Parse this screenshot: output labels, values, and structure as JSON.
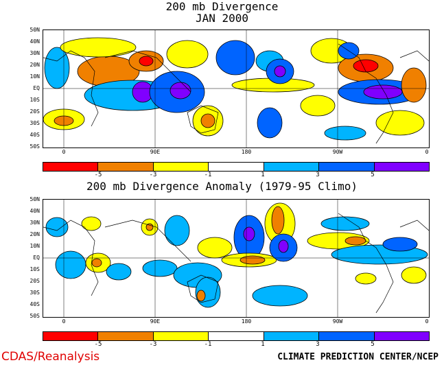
{
  "panels": [
    {
      "title_lines": [
        "200 mb Divergence",
        "JAN 2000"
      ],
      "lat_labels": [
        "50N",
        "40N",
        "30N",
        "20N",
        "10N",
        "EQ",
        "10S",
        "20S",
        "30S",
        "40S",
        "50S"
      ],
      "lon_labels": [
        "0",
        "90E",
        "180",
        "90W",
        "0"
      ],
      "colorbar_ticks": [
        "-5",
        "-3",
        "-1",
        "1",
        "3",
        "5"
      ]
    },
    {
      "title_lines": [
        "200 mb Divergence Anomaly (1979-95 Climo)"
      ],
      "lat_labels": [
        "50N",
        "40N",
        "30N",
        "20N",
        "10N",
        "EQ",
        "10S",
        "20S",
        "30S",
        "40S",
        "50S"
      ],
      "lon_labels": [
        "0",
        "90E",
        "180",
        "90W",
        "0"
      ],
      "colorbar_ticks": [
        "-5",
        "-3",
        "-1",
        "1",
        "3",
        "5"
      ]
    }
  ],
  "colorbar_colors": [
    "#ff0000",
    "#f08000",
    "#ffff00",
    "#ffffff",
    "#00b4ff",
    "#0064ff",
    "#8000ff"
  ],
  "footer": {
    "left": "CDAS/Reanalysis",
    "right": "CLIMATE PREDICTION CENTER/NCEP"
  }
}
